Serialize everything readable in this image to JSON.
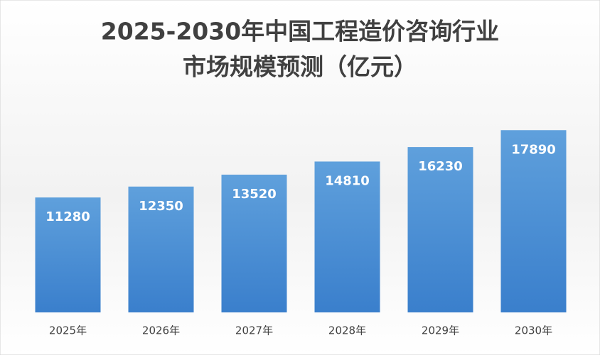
{
  "chart_data": {
    "type": "bar",
    "title": [
      "2025-2030年中国工程造价咨询行业",
      "市场规模预测（亿元）"
    ],
    "categories": [
      "2025年",
      "2026年",
      "2027年",
      "2028年",
      "2029年",
      "2030年"
    ],
    "values": [
      11280,
      12350,
      13520,
      14810,
      16230,
      17890
    ],
    "color": "#4a8fd6",
    "ylim": [
      0,
      20000
    ]
  }
}
